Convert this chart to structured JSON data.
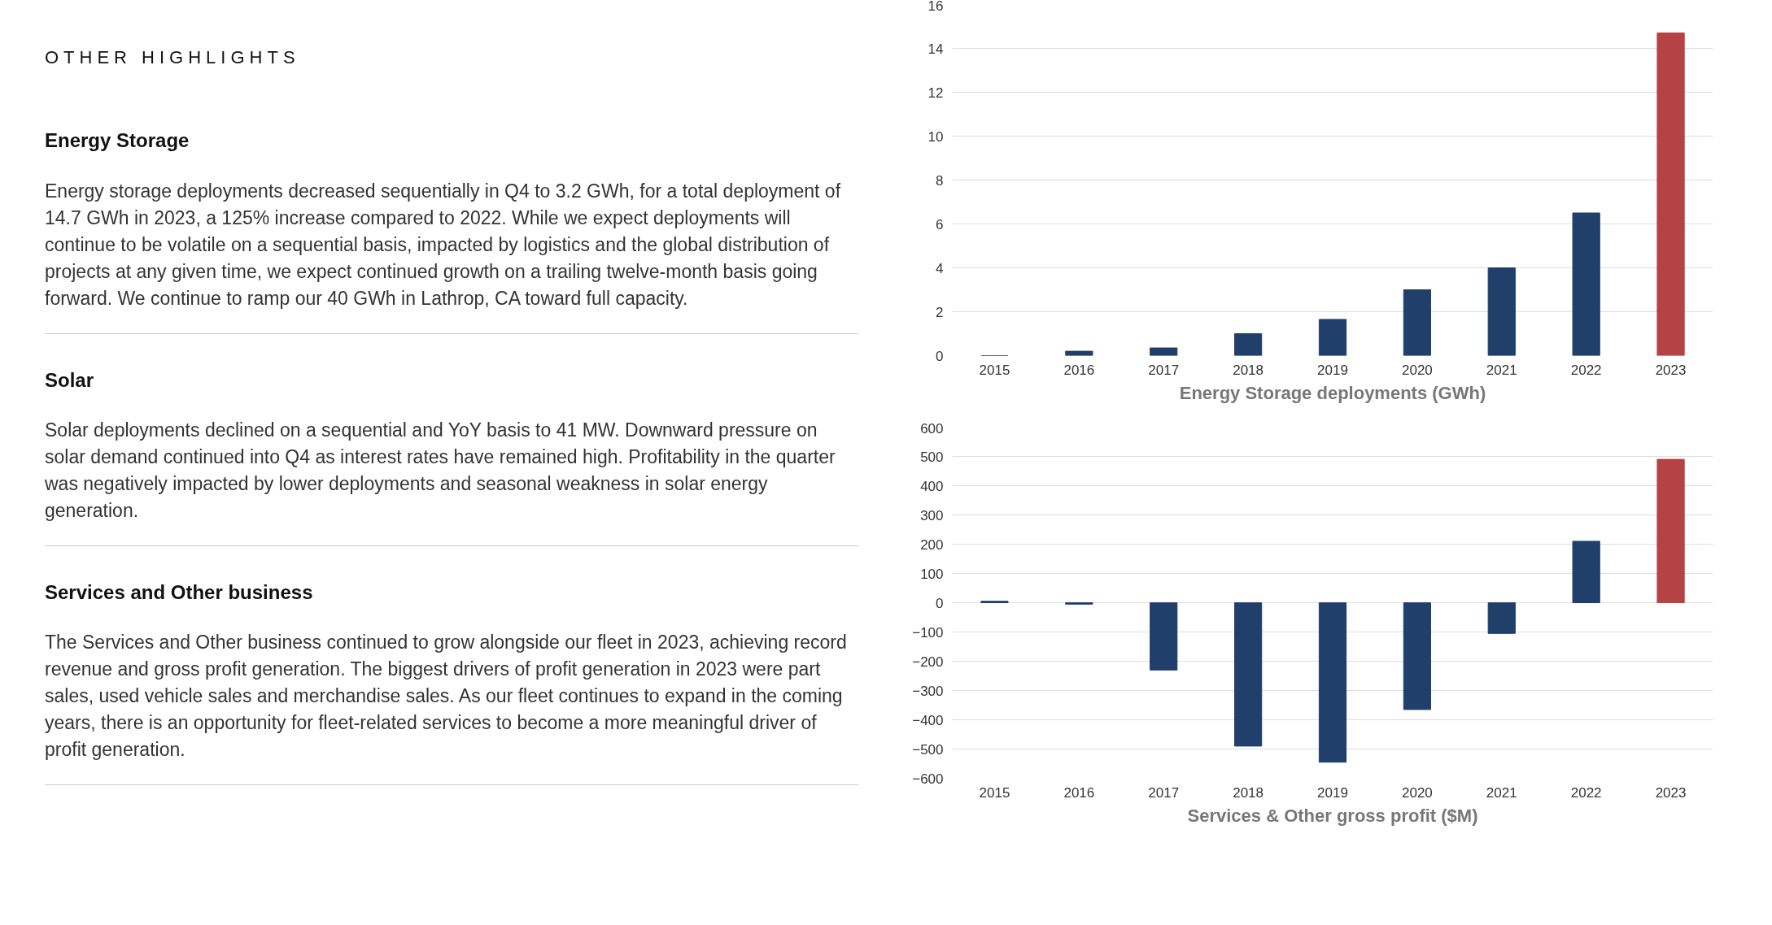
{
  "chart_data": [
    {
      "type": "other",
      "title": "OTHER HIGHLIGHTS",
      "annotations": [
        "Energy Storage",
        "Energy storage deployments decreased sequentially in Q4 to 3.2 GWh, for a total deployment of 14.7 GWh in 2023, a 125% increase compared to 2022. While we expect deployments will continue to be volatile on a sequential basis, impacted by logistics and the global distribution of projects at any given time, we expect continued growth on a trailing twelve-month basis going forward. We continue to ramp our 40 GWh in Lathrop, CA toward full capacity.",
        "Solar",
        "Solar deployments declined on a sequential and YoY basis to 41 MW. Downward pressure on solar demand continued into Q4 as interest rates have remained high. Profitability in the quarter was negatively impacted by lower deployments and seasonal weakness in solar energy generation.",
        "Services and Other business",
        "The Services and Other business continued to grow alongside our fleet in 2023, achieving record revenue and gross profit generation. The biggest drivers of profit generation in 2023 were part sales, used vehicle sales and merchandise sales. As our fleet continues to expand in the coming years, there is an opportunity for fleet-related services to become a more meaningful driver of profit generation."
      ]
    },
    {
      "type": "bar",
      "title": "Energy Storage deployments (GWh)",
      "categories": [
        "2015",
        "2016",
        "2017",
        "2018",
        "2019",
        "2020",
        "2021",
        "2022",
        "2023"
      ],
      "values": [
        0,
        0.2,
        0.35,
        1.0,
        1.65,
        3.0,
        4.0,
        6.5,
        14.7
      ],
      "colors": [
        "#213f6b",
        "#213f6b",
        "#213f6b",
        "#213f6b",
        "#213f6b",
        "#213f6b",
        "#213f6b",
        "#213f6b",
        "#b54245"
      ],
      "ylim": [
        0,
        16
      ],
      "yticks": [
        0,
        2,
        4,
        6,
        8,
        10,
        12,
        14,
        16
      ],
      "grid": "y"
    },
    {
      "type": "bar",
      "title": "Services & Other gross profit ($M)",
      "categories": [
        "2015",
        "2016",
        "2017",
        "2018",
        "2019",
        "2020",
        "2021",
        "2022",
        "2023"
      ],
      "values": [
        5,
        -5,
        -230,
        -490,
        -545,
        -365,
        -105,
        210,
        490
      ],
      "colors": [
        "#213f6b",
        "#213f6b",
        "#213f6b",
        "#213f6b",
        "#213f6b",
        "#213f6b",
        "#213f6b",
        "#213f6b",
        "#b54245"
      ],
      "ylim": [
        -600,
        600
      ],
      "yticks": [
        -600,
        -500,
        -400,
        -300,
        -200,
        -100,
        0,
        100,
        200,
        300,
        400,
        500,
        600
      ],
      "grid": "y"
    }
  ]
}
